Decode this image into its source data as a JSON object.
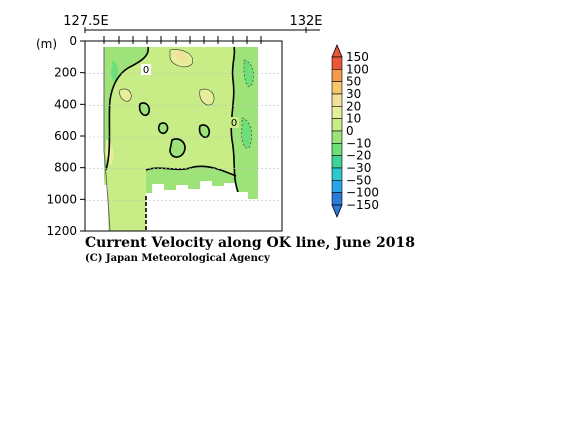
{
  "chart_data": {
    "type": "heatmap",
    "title": "Current Velocity along OK line, June 2018",
    "credit": "(C) Japan Meteorological Agency",
    "x_tick_labels": [
      "127.5E",
      "132E"
    ],
    "y_unit_label": "(m)",
    "y_ticks": [
      0,
      200,
      400,
      600,
      800,
      1000,
      1200
    ],
    "ylim": [
      1200,
      0
    ],
    "colorbar": {
      "levels": [
        "150",
        "100",
        "50",
        "30",
        "20",
        "10",
        "0",
        "−10",
        "−20",
        "−30",
        "−50",
        "−100",
        "−150"
      ],
      "colors": [
        "#e8563b",
        "#f59a4a",
        "#f5c66a",
        "#f0e09a",
        "#e6ee9c",
        "#c8ec86",
        "#9ee37a",
        "#6dde78",
        "#3fd39a",
        "#2ec8cf",
        "#2aa6e8",
        "#2c79d8"
      ]
    },
    "contour_labels": [
      "0",
      "0"
    ]
  }
}
